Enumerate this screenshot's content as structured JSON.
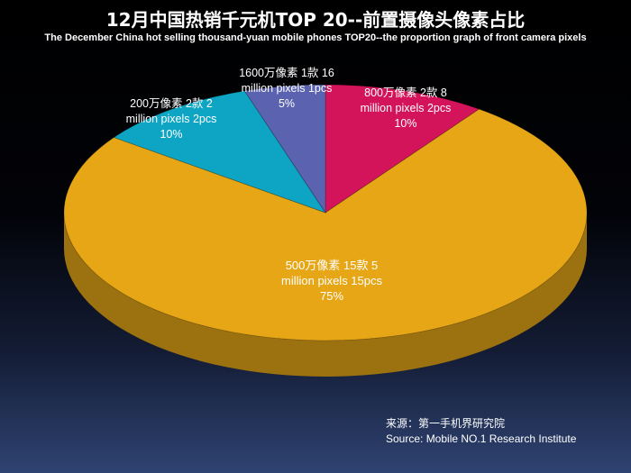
{
  "chart_data": {
    "type": "pie",
    "title": "12月中国热销千元机TOP 20--前置摄像头像素占比",
    "subtitle": "The December China hot selling thousand-yuan mobile phones TOP20--the proportion graph of front camera pixels",
    "slices": [
      {
        "label_lines": [
          "800万像素 2款 8",
          "million pixels 2pcs",
          "10%"
        ],
        "value": 10,
        "color": "#d4145a"
      },
      {
        "label_lines": [
          "500万像素 15款 5",
          "million pixels 15pcs",
          "75%"
        ],
        "value": 75,
        "color": "#e6a616"
      },
      {
        "label_lines": [
          "200万像素 2款 2",
          "million pixels 2pcs",
          "10%"
        ],
        "value": 10,
        "color": "#0ea5c4"
      },
      {
        "label_lines": [
          "1600万像素 1款 16",
          "million pixels 1pcs",
          "5%"
        ],
        "value": 5,
        "color": "#5b62b0"
      }
    ],
    "legend": "none",
    "style": "3d"
  },
  "source": {
    "line1": "来源：第一手机界研究院",
    "line2": "Source: Mobile NO.1 Research Institute"
  }
}
